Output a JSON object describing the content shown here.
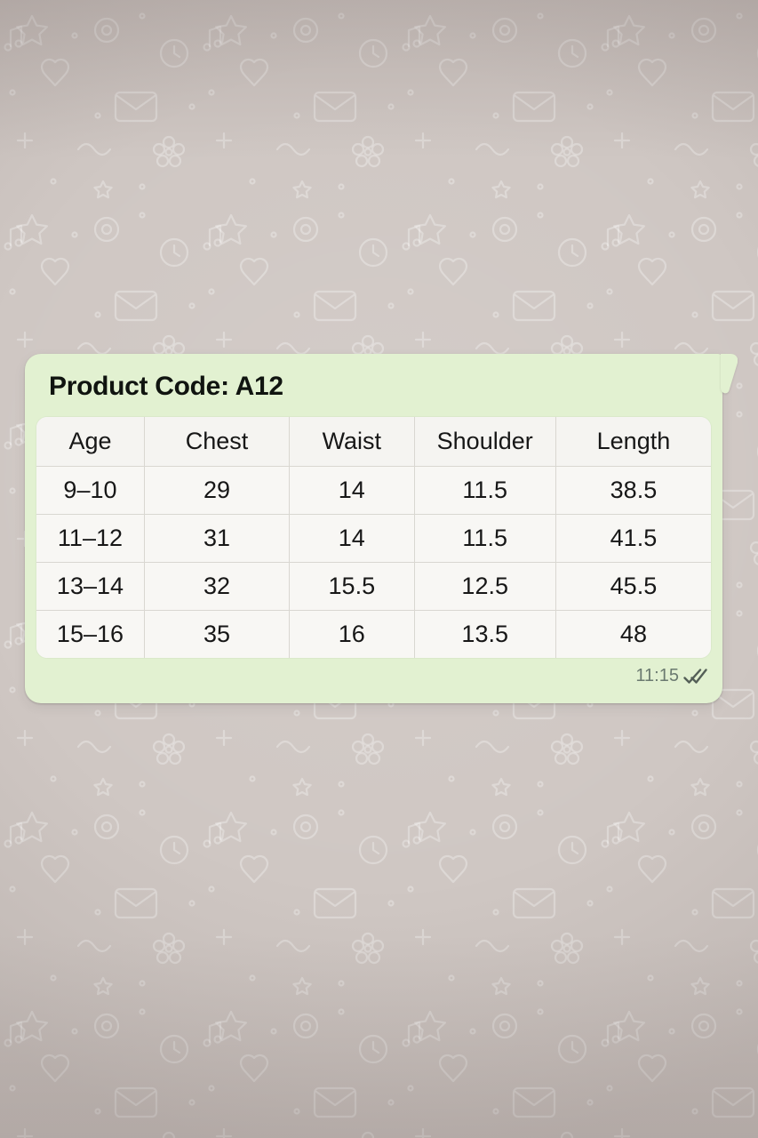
{
  "background": {
    "description": "whatsapp-doodle-wallpaper",
    "color": "#cfc7c3",
    "doodle_color": "#ffffff"
  },
  "message": {
    "direction": "outgoing",
    "bubble_color": "#e2f1d1",
    "title": "Product Code: A12",
    "time": "11:15",
    "status": "delivered",
    "status_icon": "double-check-icon",
    "table": {
      "headers": [
        "Age",
        "Chest",
        "Waist",
        "Shoulder",
        "Length"
      ],
      "rows": [
        [
          "9–10",
          "29",
          "14",
          "11.5",
          "38.5"
        ],
        [
          "11–12",
          "31",
          "14",
          "11.5",
          "41.5"
        ],
        [
          "13–14",
          "32",
          "15.5",
          "12.5",
          "45.5"
        ],
        [
          "15–16",
          "35",
          "16",
          "13.5",
          "48"
        ]
      ]
    },
    "colors": {
      "text": "#171717",
      "meta_text": "#6b7a70",
      "tick": "#545f57",
      "table_border": "#d9d7d1",
      "table_background": "#f8f7f4"
    }
  }
}
